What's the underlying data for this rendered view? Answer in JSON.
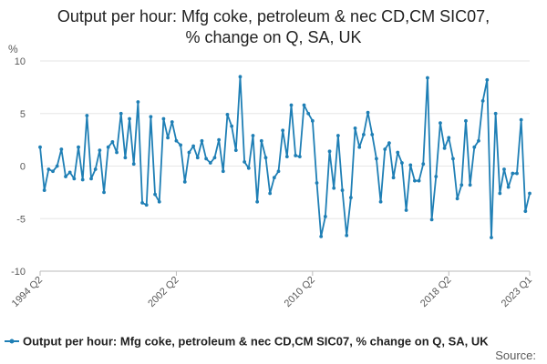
{
  "chart_data": {
    "type": "line",
    "title": "Output per hour: Mfg coke, petroleum & nec CD,CM SIC07, % change on Q, SA, UK",
    "title_lines": [
      "Output per hour: Mfg coke, petroleum & nec CD,CM SIC07,",
      "% change on Q, SA, UK"
    ],
    "ylabel": "%",
    "xlabel": "",
    "ylim": [
      -10,
      10
    ],
    "y_ticks": [
      10,
      5,
      0,
      -5,
      -10
    ],
    "x_tick_labels": [
      "1994 Q2",
      "2002 Q2",
      "2010 Q2",
      "2018 Q2",
      "2023 Q1"
    ],
    "grid": true,
    "legend_position": "bottom",
    "source_label": "Source:",
    "colors": {
      "series": "#1f7fb5",
      "grid": "#e6e6e6",
      "axis": "#bbbbbb"
    },
    "series": [
      {
        "name": "Output per hour: Mfg coke, petroleum & nec CD,CM SIC07, % change on Q, SA, UK",
        "start": "1994 Q2",
        "end": "2023 Q1",
        "values": [
          1.8,
          -2.3,
          -0.3,
          -0.5,
          0.0,
          1.6,
          -1.0,
          -0.6,
          -1.2,
          1.8,
          -1.3,
          4.8,
          -1.2,
          -0.3,
          1.5,
          -2.5,
          1.8,
          2.3,
          1.3,
          5.0,
          0.8,
          4.5,
          0.2,
          6.1,
          -3.5,
          -3.7,
          4.7,
          -2.7,
          -3.4,
          4.5,
          2.7,
          4.2,
          2.4,
          2.0,
          -1.5,
          1.3,
          1.9,
          0.8,
          2.4,
          0.7,
          0.3,
          0.8,
          2.5,
          -0.5,
          4.9,
          3.8,
          1.5,
          8.5,
          0.4,
          -0.2,
          2.9,
          -3.4,
          2.4,
          0.8,
          -2.6,
          -1.1,
          -0.5,
          3.4,
          0.9,
          5.8,
          1.0,
          0.9,
          5.8,
          5.0,
          4.3,
          -1.6,
          -6.7,
          -4.8,
          1.4,
          -2.1,
          2.9,
          -2.3,
          -6.6,
          -3.0,
          3.6,
          1.8,
          3.0,
          5.1,
          3.0,
          0.7,
          -3.4,
          1.6,
          2.2,
          -1.1,
          1.3,
          0.3,
          -4.2,
          0.1,
          -1.4,
          -1.4,
          0.2,
          8.4,
          -5.1,
          -1.0,
          4.1,
          1.7,
          2.7,
          0.7,
          -3.1,
          -1.8,
          4.3,
          -1.8,
          1.8,
          2.4,
          6.2,
          8.2,
          -6.8,
          5.0,
          -2.6,
          -0.3,
          -2.0,
          -0.7,
          -0.7,
          4.4,
          -4.3,
          -2.6
        ]
      }
    ]
  }
}
